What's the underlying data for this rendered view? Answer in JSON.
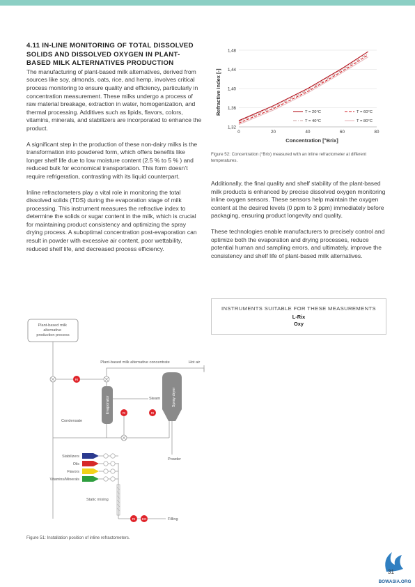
{
  "heading": "4.11 IN-LINE MONITORING OF TOTAL DISSOLVED SOLIDS AND DISSOLVED OXYGEN IN PLANT-BASED MILK ALTERNATIVES PRODUCTION",
  "left_paragraphs": [
    "The manufacturing of plant-based milk alternatives, derived from sources like soy, almonds, oats, rice, and hemp, involves critical process monitoring to ensure quality and efficiency, particularly in concentration measurement. These milks undergo a process of raw material breakage, extraction in water, homogenization, and thermal processing. Additives such as lipids, flavors, colors, vitamins, minerals, and stabilizers are incorporated to enhance the product.",
    "A significant step in the production of these non-dairy milks is the transformation into powdered form, which offers benefits like longer shelf life due to low moisture content (2.5 % to 5 % ) and reduced bulk for economical transportation. This form doesn’t require refrigeration, contrasting with its liquid counterpart.",
    "Inline refractometers play a vital role in monitoring the total dissolved solids (TDS) during the evaporation stage of milk processing. This instrument measures the refractive index to determine the solids or sugar content in the milk, which is crucial for maintaining product consistency and optimizing the spray drying process. A suboptimal concentration post-evaporation can result in powder with excessive air content, poor wettability, reduced shelf life, and decreased process efficiency."
  ],
  "right_paragraphs": [
    "Additionally, the final quality and shelf stability of the plant-based milk products is enhanced by precise dissolved oxygen monitoring inline oxygen sensors. These sensors help maintain the oxygen content at the desired levels (0 ppm to 3 ppm) immediately before packaging, ensuring product longevity and quality.",
    "These technologies enable manufacturers to precisely control and optimize both the evaporation and drying processes, reduce potential human and sampling errors, and ultimately, improve the consistency and shelf life of plant-based milk alternatives."
  ],
  "instruments_box": {
    "title": "INSTRUMENTS SUITABLE FOR THESE MEASUREMENTS",
    "items": [
      "L-Rix",
      "Oxy"
    ]
  },
  "figure51_caption": "Figure 51: Installation position of inline refractometers.",
  "figure52_caption": "Figure 52: Concentration (°Brix) measured with an inline refractometer at different temperatures.",
  "flow_diagram": {
    "start_box": "Plant-based milk alternative production process",
    "concentrate": "Plant-based milk alternative concentrate",
    "hot_air": "Hot air",
    "steam": "Steam",
    "evaporator": "Evaporator",
    "spray_dryer": "Spray dryer",
    "condensate": "Condensate",
    "powder": "Powder",
    "static_mixing": "Static mixing",
    "filling": "Filling",
    "sensor_ri": "RI",
    "sensor_dr": "DO",
    "additives": [
      {
        "label": "Stabilizers",
        "color": "#2b3a8f"
      },
      {
        "label": "Oils",
        "color": "#d62828"
      },
      {
        "label": "Flavors",
        "color": "#f2d21b"
      },
      {
        "label": "Vitamins/Minerals",
        "color": "#2e9e3e"
      }
    ]
  },
  "chart_data": {
    "type": "line",
    "xlabel": "Concentration [°Brix]",
    "ylabel": "Refractive index [-]",
    "xlim": [
      0,
      80
    ],
    "ylim": [
      1.32,
      1.48
    ],
    "xticks": [
      "0",
      "20",
      "40",
      "60",
      "80"
    ],
    "yticks": [
      "1,32",
      "1,36",
      "1,40",
      "1,44",
      "1,48"
    ],
    "series": [
      {
        "name": "T = 20°C",
        "color": "#b3101a",
        "dash": "solid",
        "x": [
          0,
          20,
          40,
          60,
          75
        ],
        "y": [
          1.333,
          1.364,
          1.4,
          1.442,
          1.477
        ]
      },
      {
        "name": "T = 40°C",
        "color": "#c8a0a0",
        "dash": "dashdot",
        "x": [
          0,
          20,
          40,
          60,
          75
        ],
        "y": [
          1.331,
          1.361,
          1.397,
          1.439,
          1.473
        ]
      },
      {
        "name": "T = 60°C",
        "color": "#d21a20",
        "dash": "dashed",
        "x": [
          0,
          20,
          40,
          60,
          75
        ],
        "y": [
          1.328,
          1.358,
          1.394,
          1.436,
          1.47
        ]
      },
      {
        "name": "T = 80°C",
        "color": "#e6b9bc",
        "dash": "solid",
        "x": [
          0,
          20,
          40,
          60,
          75
        ],
        "y": [
          1.325,
          1.355,
          1.391,
          1.433,
          1.466
        ]
      }
    ]
  },
  "page_number": "31",
  "logo_text": "BOWASIA.ORG",
  "colors": {
    "top_bar": "#8ccfc4",
    "sensor": "#e0242a",
    "logo": "#2f7fc1"
  }
}
